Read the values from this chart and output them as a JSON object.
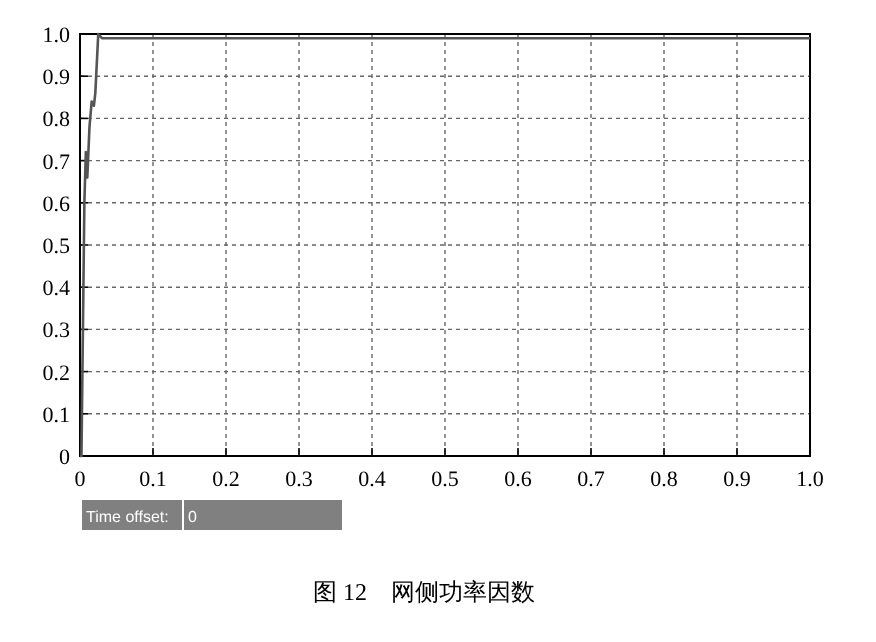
{
  "chart_data": {
    "type": "line",
    "title": "图 12　网侧功率因数",
    "annotations": [
      "Time offset:",
      "0"
    ],
    "x": [
      0,
      0.002,
      0.006,
      0.008,
      0.01,
      0.011,
      0.013,
      0.016,
      0.019,
      0.021,
      0.025,
      0.03,
      0.04,
      1.0
    ],
    "series": [
      {
        "color": "#555555",
        "values": [
          0,
          0,
          0.6,
          0.72,
          0.66,
          0.7,
          0.78,
          0.84,
          0.83,
          0.86,
          1.0,
          0.99,
          0.99,
          0.99
        ]
      }
    ],
    "xlim": [
      0,
      1
    ],
    "ylim": [
      0,
      1
    ],
    "xticks": [
      0,
      0.1,
      0.2,
      0.3,
      0.4,
      0.5,
      0.6,
      0.7,
      0.8,
      0.9,
      {
        "value": 1,
        "label": "1.0"
      }
    ],
    "yticks": [
      0,
      0.1,
      0.2,
      0.3,
      0.4,
      0.5,
      0.6,
      0.7,
      0.8,
      0.9,
      {
        "value": 1,
        "label": "1.0"
      }
    ],
    "grid": true,
    "line_style": "solid",
    "marker": "none"
  }
}
